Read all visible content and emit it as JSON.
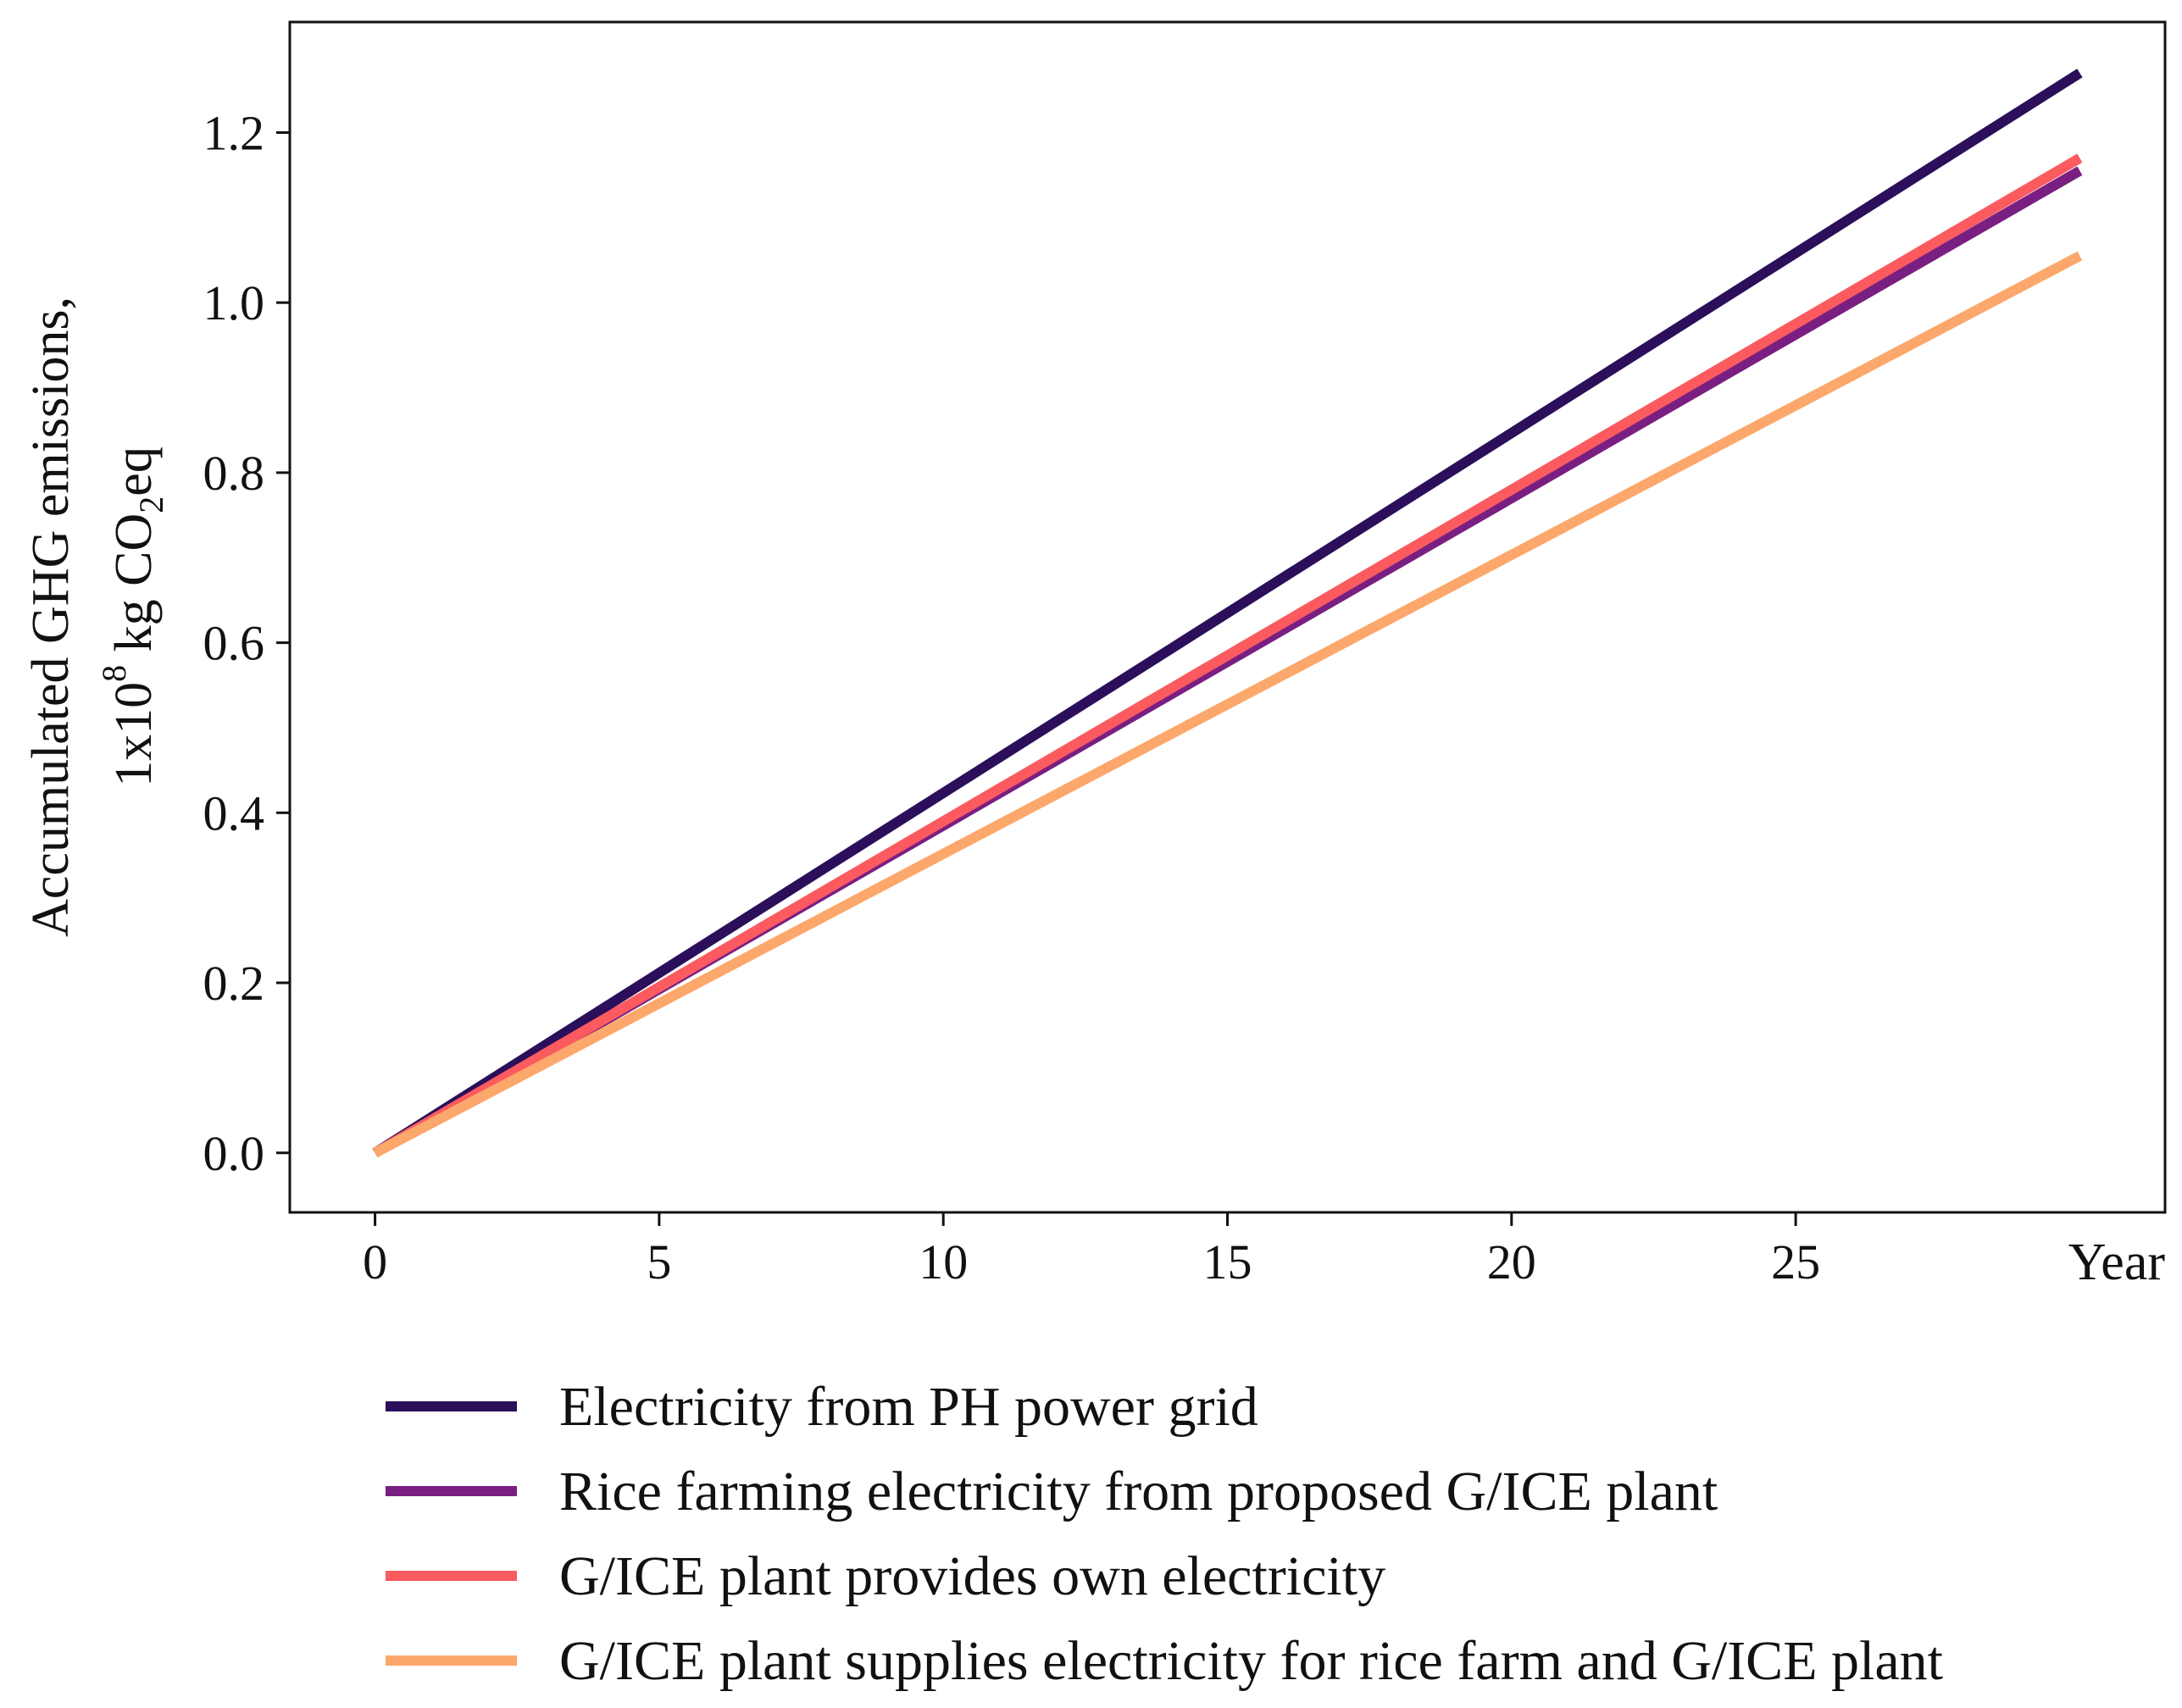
{
  "chart_data": {
    "type": "line",
    "xlabel": "Year",
    "ylabel_line1": "Accumulated GHG emissions,",
    "ylabel_line2_parts": [
      "1x10",
      "8",
      " kg CO",
      "2",
      "eq"
    ],
    "xlim": [
      -1.5,
      31.5
    ],
    "ylim": [
      -0.07,
      1.33
    ],
    "x_ticks": [
      0,
      5,
      10,
      15,
      20,
      25
    ],
    "y_ticks": [
      0.0,
      0.2,
      0.4,
      0.6,
      0.8,
      1.0,
      1.2
    ],
    "y_tick_labels": [
      "0.0",
      "0.2",
      "0.4",
      "0.6",
      "0.8",
      "1.0",
      "1.2"
    ],
    "x_tick_labels": [
      "0",
      "5",
      "10",
      "15",
      "20",
      "25"
    ],
    "legend_position": "below",
    "series": [
      {
        "name": "Electricity from PH power grid",
        "color": "#2b0f5a",
        "x": [
          0,
          30
        ],
        "y": [
          0.0,
          1.27
        ]
      },
      {
        "name": "Rice farming electricity from proposed G/ICE plant",
        "color": "#7a1f82",
        "x": [
          0,
          30
        ],
        "y": [
          0.0,
          1.155
        ]
      },
      {
        "name": "G/ICE plant provides own electricity",
        "color": "#fb5a5f",
        "x": [
          0,
          30
        ],
        "y": [
          0.0,
          1.17
        ]
      },
      {
        "name": "G/ICE plant supplies electricity for rice farm and G/ICE plant",
        "color": "#fca76b",
        "x": [
          0,
          30
        ],
        "y": [
          0.0,
          1.055
        ]
      }
    ]
  }
}
